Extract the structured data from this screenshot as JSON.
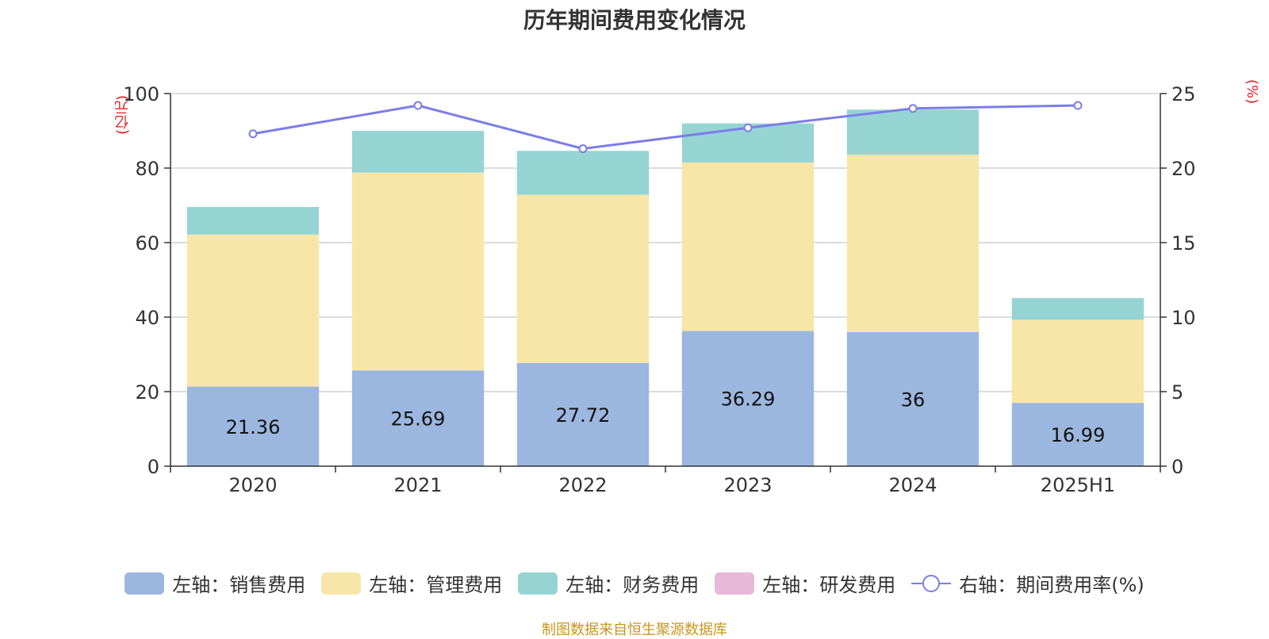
{
  "chart_data": {
    "type": "bar",
    "stacked": true,
    "title": "历年期间费用变化情况",
    "categories": [
      "2020",
      "2021",
      "2022",
      "2023",
      "2024",
      "2025H1"
    ],
    "y_left": {
      "unit": "(亿元)",
      "ylim": [
        0,
        100
      ],
      "ticks": [
        "0",
        "20",
        "40",
        "60",
        "80",
        "100"
      ]
    },
    "y_right": {
      "unit": "(%)",
      "ylim": [
        0,
        25
      ],
      "ticks": [
        "0",
        "5",
        "10",
        "15",
        "20",
        "25"
      ]
    },
    "series": [
      {
        "name": "左轴：销售费用",
        "axis": "left",
        "color": "#9bb7e0",
        "values": [
          21.36,
          25.69,
          27.72,
          36.29,
          36,
          16.99
        ],
        "labels": [
          "21.36",
          "25.69",
          "27.72",
          "36.29",
          "36",
          "16.99"
        ]
      },
      {
        "name": "左轴：管理费用",
        "axis": "left",
        "color": "#f8e6a8",
        "values": [
          40.8,
          53.1,
          45.1,
          45.2,
          47.6,
          22.3
        ]
      },
      {
        "name": "左轴：财务费用",
        "axis": "left",
        "color": "#96d4d4",
        "values": [
          7.4,
          11.2,
          11.8,
          10.5,
          12.1,
          5.8
        ]
      },
      {
        "name": "左轴：研发费用",
        "axis": "left",
        "color": "#e8b8d8",
        "values": [
          0,
          0,
          0,
          0,
          0,
          0
        ]
      },
      {
        "name": "右轴：期间费用率(%)",
        "axis": "right",
        "type": "line",
        "color": "#7b7de8",
        "values": [
          22.3,
          24.2,
          21.3,
          22.7,
          24.0,
          24.2
        ]
      }
    ],
    "grid": true,
    "legend_position": "bottom"
  },
  "source": "制图数据来自恒生聚源数据库"
}
